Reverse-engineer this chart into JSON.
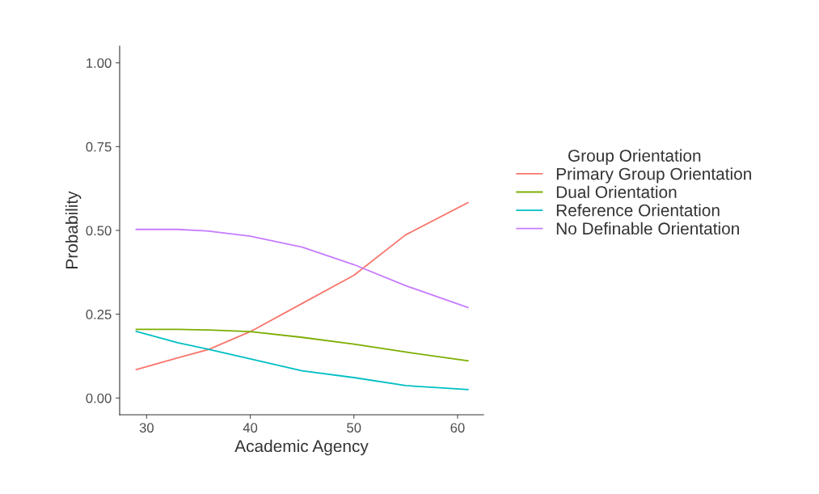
{
  "chart_data": {
    "type": "line",
    "xlabel": "Academic Agency",
    "ylabel": "Probability",
    "legend_title": "Group Orientation",
    "x": [
      29,
      33,
      36,
      40,
      45,
      50,
      55,
      61
    ],
    "series": [
      {
        "name": "Primary Group Orientation",
        "color": "#f8766d",
        "values": [
          0.085,
          0.12,
          0.145,
          0.198,
          0.282,
          0.366,
          0.487,
          0.583
        ]
      },
      {
        "name": "Dual Orientation",
        "color": "#7cae00",
        "values": [
          0.205,
          0.205,
          0.203,
          0.198,
          0.181,
          0.161,
          0.137,
          0.111
        ]
      },
      {
        "name": "Reference Orientation",
        "color": "#00bfc4",
        "values": [
          0.199,
          0.165,
          0.145,
          0.117,
          0.081,
          0.061,
          0.037,
          0.025
        ]
      },
      {
        "name": "No Definable Orientation",
        "color": "#c77cff",
        "values": [
          0.503,
          0.503,
          0.498,
          0.483,
          0.45,
          0.398,
          0.335,
          0.27
        ]
      }
    ],
    "xlim": [
      27.4,
      62.5
    ],
    "xticks": [
      30,
      40,
      50,
      60
    ],
    "ylim": [
      -0.05,
      1.05
    ],
    "yticks": [
      {
        "value": 0,
        "label": "0.00"
      },
      {
        "value": 0.25,
        "label": "0.25"
      },
      {
        "value": 0.5,
        "label": "0.50"
      },
      {
        "value": 0.75,
        "label": "0.75"
      },
      {
        "value": 1,
        "label": "1.00"
      }
    ],
    "grid": false,
    "legend": "right",
    "marker": "none",
    "line_style": "solid"
  }
}
